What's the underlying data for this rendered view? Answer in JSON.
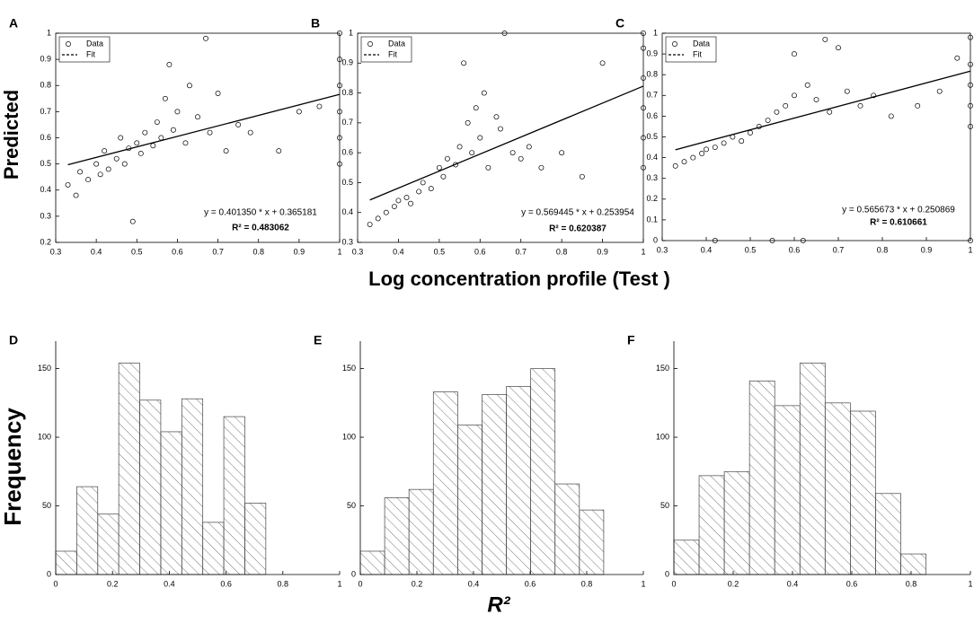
{
  "figure_labels": {
    "scatter_y": "Predicted",
    "scatter_x": "Log concentration profile (Test )",
    "hist_y": "Frequency",
    "hist_x": "R²"
  },
  "chart_data": [
    {
      "type": "scatter",
      "title": "A",
      "xlim": [
        0.3,
        1
      ],
      "ylim": [
        0.2,
        1
      ],
      "xticks": [
        0.3,
        0.4,
        0.5,
        0.6,
        0.7,
        0.8,
        0.9,
        1
      ],
      "yticks": [
        0.2,
        0.3,
        0.4,
        0.5,
        0.6,
        0.7,
        0.8,
        0.9,
        1
      ],
      "legend": "upper left",
      "legend_labels": [
        "Data",
        "Fit"
      ],
      "x": [
        0.33,
        0.35,
        0.36,
        0.38,
        0.4,
        0.41,
        0.42,
        0.43,
        0.45,
        0.46,
        0.47,
        0.48,
        0.49,
        0.5,
        0.51,
        0.52,
        0.54,
        0.55,
        0.56,
        0.57,
        0.58,
        0.59,
        0.6,
        0.62,
        0.63,
        0.65,
        0.67,
        0.68,
        0.7,
        0.72,
        0.75,
        0.78,
        0.85,
        0.9,
        0.95,
        1,
        1,
        1,
        1,
        1,
        1
      ],
      "y": [
        0.42,
        0.38,
        0.47,
        0.44,
        0.5,
        0.46,
        0.55,
        0.48,
        0.52,
        0.6,
        0.5,
        0.56,
        0.28,
        0.58,
        0.54,
        0.62,
        0.57,
        0.66,
        0.6,
        0.75,
        0.88,
        0.63,
        0.7,
        0.58,
        0.8,
        0.68,
        0.98,
        0.62,
        0.77,
        0.55,
        0.65,
        0.62,
        0.55,
        0.7,
        0.72,
        0.5,
        0.6,
        0.7,
        0.8,
        0.9,
        1
      ],
      "fit": {
        "x": [
          0.33,
          1
        ],
        "y": [
          0.497,
          0.766
        ]
      },
      "annotations": [
        "y = 0.401350 * x + 0.365181",
        "R² = 0.483062"
      ]
    },
    {
      "type": "scatter",
      "title": "B",
      "xlim": [
        0.3,
        1
      ],
      "ylim": [
        0.3,
        1
      ],
      "xticks": [
        0.3,
        0.4,
        0.5,
        0.6,
        0.7,
        0.8,
        0.9,
        1
      ],
      "yticks": [
        0.3,
        0.4,
        0.5,
        0.6,
        0.7,
        0.8,
        0.9,
        1
      ],
      "legend": "upper left",
      "legend_labels": [
        "Data",
        "Fit"
      ],
      "x": [
        0.33,
        0.35,
        0.37,
        0.39,
        0.4,
        0.42,
        0.43,
        0.45,
        0.46,
        0.48,
        0.5,
        0.51,
        0.52,
        0.54,
        0.55,
        0.56,
        0.57,
        0.58,
        0.59,
        0.6,
        0.61,
        0.62,
        0.64,
        0.65,
        0.66,
        0.68,
        0.7,
        0.72,
        0.75,
        0.8,
        0.85,
        0.9,
        1,
        1,
        1,
        1,
        1,
        1
      ],
      "y": [
        0.36,
        0.38,
        0.4,
        0.42,
        0.44,
        0.45,
        0.43,
        0.47,
        0.5,
        0.48,
        0.55,
        0.52,
        0.58,
        0.56,
        0.62,
        0.9,
        0.7,
        0.6,
        0.75,
        0.65,
        0.8,
        0.55,
        0.72,
        0.68,
        1.0,
        0.6,
        0.58,
        0.62,
        0.55,
        0.6,
        0.52,
        0.9,
        0.55,
        0.65,
        0.75,
        0.85,
        0.95,
        1
      ],
      "fit": {
        "x": [
          0.33,
          1
        ],
        "y": [
          0.442,
          0.823
        ]
      },
      "annotations": [
        "y = 0.569445 * x + 0.253954",
        "R² = 0.620387"
      ]
    },
    {
      "type": "scatter",
      "title": "C",
      "xlim": [
        0.3,
        1
      ],
      "ylim": [
        0,
        1
      ],
      "xticks": [
        0.3,
        0.4,
        0.5,
        0.6,
        0.7,
        0.8,
        0.9,
        1
      ],
      "yticks": [
        0,
        0.1,
        0.2,
        0.3,
        0.4,
        0.5,
        0.6,
        0.7,
        0.8,
        0.9,
        1
      ],
      "legend": "upper left",
      "legend_labels": [
        "Data",
        "Fit"
      ],
      "x": [
        0.33,
        0.35,
        0.37,
        0.39,
        0.4,
        0.42,
        0.42,
        0.44,
        0.46,
        0.48,
        0.5,
        0.52,
        0.54,
        0.55,
        0.56,
        0.58,
        0.6,
        0.6,
        0.62,
        0.63,
        0.65,
        0.67,
        0.68,
        0.7,
        0.72,
        0.75,
        0.78,
        0.82,
        0.88,
        0.93,
        0.97,
        1,
        1,
        1,
        1,
        1,
        1
      ],
      "y": [
        0.36,
        0.38,
        0.4,
        0.42,
        0.44,
        0.45,
        0,
        0.47,
        0.5,
        0.48,
        0.52,
        0.55,
        0.58,
        0,
        0.62,
        0.65,
        0.7,
        0.9,
        0,
        0.75,
        0.68,
        0.97,
        0.62,
        0.93,
        0.72,
        0.65,
        0.7,
        0.6,
        0.65,
        0.72,
        0.88,
        0,
        0.55,
        0.65,
        0.75,
        0.85,
        0.98
      ],
      "fit": {
        "x": [
          0.33,
          1
        ],
        "y": [
          0.438,
          0.817
        ]
      },
      "annotations": [
        "y = 0.565673 * x + 0.250869",
        "R² = 0.610661"
      ]
    },
    {
      "type": "histogram",
      "title": "D",
      "xlim": [
        0,
        1
      ],
      "ylim": [
        0,
        170
      ],
      "xticks": [
        0,
        0.2,
        0.4,
        0.6,
        0.8,
        1
      ],
      "yticks": [
        0,
        50,
        100,
        150
      ],
      "bins": [
        0,
        0.074,
        0.148,
        0.222,
        0.296,
        0.37,
        0.444,
        0.518,
        0.592,
        0.666,
        0.74
      ],
      "values": [
        17,
        64,
        44,
        154,
        127,
        104,
        128,
        38,
        115,
        52
      ]
    },
    {
      "type": "histogram",
      "title": "E",
      "xlim": [
        0,
        1
      ],
      "ylim": [
        0,
        170
      ],
      "xticks": [
        0,
        0.2,
        0.4,
        0.6,
        0.8,
        1
      ],
      "yticks": [
        0,
        50,
        100,
        150
      ],
      "bins": [
        0,
        0.086,
        0.172,
        0.258,
        0.344,
        0.43,
        0.516,
        0.602,
        0.688,
        0.774,
        0.86
      ],
      "values": [
        17,
        56,
        62,
        133,
        109,
        131,
        137,
        150,
        66,
        47
      ]
    },
    {
      "type": "histogram",
      "title": "F",
      "xlim": [
        0,
        1
      ],
      "ylim": [
        0,
        170
      ],
      "xticks": [
        0,
        0.2,
        0.4,
        0.6,
        0.8,
        1
      ],
      "yticks": [
        0,
        50,
        100,
        150
      ],
      "bins": [
        0,
        0.085,
        0.17,
        0.255,
        0.34,
        0.425,
        0.51,
        0.595,
        0.68,
        0.765,
        0.85
      ],
      "values": [
        25,
        72,
        75,
        141,
        123,
        154,
        125,
        119,
        59,
        15
      ]
    }
  ]
}
